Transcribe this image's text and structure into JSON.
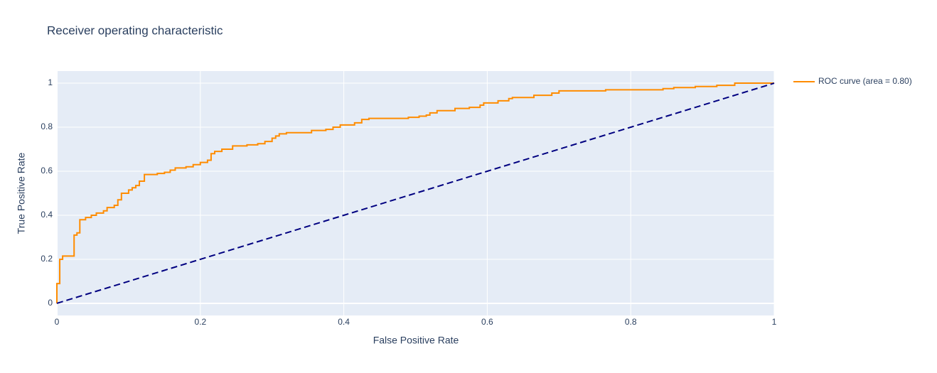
{
  "chart_data": {
    "type": "line",
    "title": "Receiver operating characteristic",
    "x_label": "False Positive Rate",
    "y_label": "True Positive Rate",
    "xlim": [
      0,
      1
    ],
    "ylim": [
      -0.055,
      1.055
    ],
    "xticks": [
      0,
      0.2,
      0.4,
      0.6,
      0.8,
      1
    ],
    "yticks": [
      0,
      0.2,
      0.4,
      0.6,
      0.8,
      1
    ],
    "grid": true,
    "legend": "right",
    "series": [
      {
        "name": "ROC curve (area = 0.80)",
        "color": "darkorange",
        "x": [
          0,
          0,
          0.004,
          0.004,
          0.008,
          0.008,
          0.024,
          0.024,
          0.028,
          0.028,
          0.032,
          0.032,
          0.04,
          0.04,
          0.048,
          0.048,
          0.055,
          0.055,
          0.065,
          0.065,
          0.07,
          0.07,
          0.08,
          0.08,
          0.085,
          0.085,
          0.09,
          0.09,
          0.1,
          0.1,
          0.105,
          0.105,
          0.11,
          0.11,
          0.115,
          0.115,
          0.122,
          0.122,
          0.14,
          0.14,
          0.15,
          0.15,
          0.158,
          0.158,
          0.165,
          0.165,
          0.18,
          0.18,
          0.19,
          0.19,
          0.2,
          0.2,
          0.21,
          0.21,
          0.215,
          0.215,
          0.22,
          0.22,
          0.23,
          0.23,
          0.245,
          0.245,
          0.265,
          0.265,
          0.28,
          0.28,
          0.29,
          0.29,
          0.3,
          0.3,
          0.305,
          0.305,
          0.31,
          0.31,
          0.32,
          0.32,
          0.355,
          0.355,
          0.375,
          0.375,
          0.385,
          0.385,
          0.395,
          0.395,
          0.415,
          0.415,
          0.425,
          0.425,
          0.435,
          0.435,
          0.49,
          0.49,
          0.505,
          0.505,
          0.515,
          0.515,
          0.52,
          0.52,
          0.53,
          0.53,
          0.555,
          0.555,
          0.575,
          0.575,
          0.59,
          0.59,
          0.595,
          0.595,
          0.615,
          0.615,
          0.63,
          0.63,
          0.635,
          0.635,
          0.665,
          0.665,
          0.69,
          0.69,
          0.7,
          0.7,
          0.765,
          0.765,
          0.845,
          0.845,
          0.86,
          0.86,
          0.89,
          0.89,
          0.92,
          0.92,
          0.945,
          0.945,
          1
        ],
        "values": [
          0,
          0.09,
          0.09,
          0.2,
          0.2,
          0.215,
          0.215,
          0.31,
          0.31,
          0.32,
          0.32,
          0.38,
          0.38,
          0.39,
          0.39,
          0.4,
          0.4,
          0.41,
          0.41,
          0.42,
          0.42,
          0.435,
          0.435,
          0.445,
          0.445,
          0.47,
          0.47,
          0.5,
          0.5,
          0.515,
          0.515,
          0.525,
          0.525,
          0.535,
          0.535,
          0.555,
          0.555,
          0.585,
          0.585,
          0.59,
          0.59,
          0.595,
          0.595,
          0.605,
          0.605,
          0.615,
          0.615,
          0.62,
          0.62,
          0.63,
          0.63,
          0.64,
          0.64,
          0.65,
          0.65,
          0.68,
          0.68,
          0.69,
          0.69,
          0.7,
          0.7,
          0.715,
          0.715,
          0.72,
          0.72,
          0.725,
          0.725,
          0.735,
          0.735,
          0.75,
          0.75,
          0.76,
          0.76,
          0.77,
          0.77,
          0.775,
          0.775,
          0.785,
          0.785,
          0.79,
          0.79,
          0.8,
          0.8,
          0.81,
          0.81,
          0.82,
          0.82,
          0.835,
          0.835,
          0.84,
          0.84,
          0.845,
          0.845,
          0.85,
          0.85,
          0.855,
          0.855,
          0.865,
          0.865,
          0.875,
          0.875,
          0.885,
          0.885,
          0.89,
          0.89,
          0.9,
          0.9,
          0.91,
          0.91,
          0.92,
          0.92,
          0.93,
          0.93,
          0.935,
          0.935,
          0.945,
          0.945,
          0.955,
          0.955,
          0.965,
          0.965,
          0.97,
          0.97,
          0.975,
          0.975,
          0.98,
          0.98,
          0.985,
          0.985,
          0.99,
          0.99,
          1,
          1
        ]
      },
      {
        "color": "navy",
        "dash": "dash",
        "x": [
          0,
          1
        ],
        "values": [
          0,
          1
        ]
      }
    ]
  }
}
